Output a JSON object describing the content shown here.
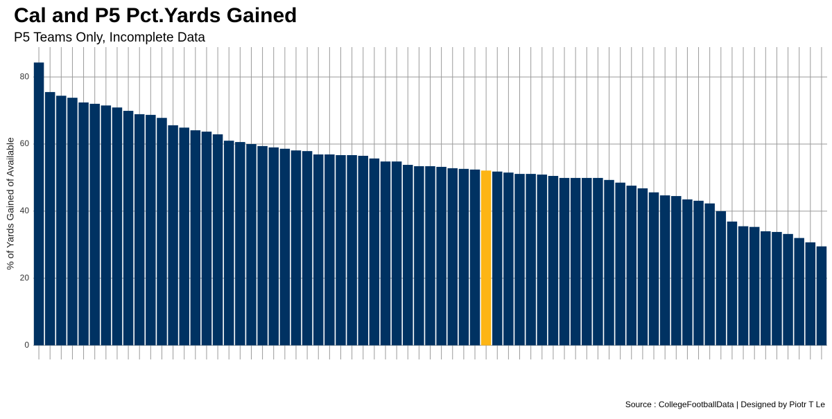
{
  "chart_data": {
    "type": "bar",
    "title": "Cal and P5  Pct.Yards Gained",
    "subtitle": "P5 Teams Only, Incomplete Data",
    "y_label": "% of Yards Gained of Available",
    "caption": "Source : CollegeFootballData | Designed by Piotr T Le",
    "categories": [
      null,
      null,
      null,
      null,
      null,
      null,
      null,
      null,
      null,
      null,
      null,
      null,
      null,
      null,
      null,
      null,
      null,
      null,
      null,
      null,
      null,
      null,
      null,
      null,
      null,
      null,
      null,
      null,
      null,
      null,
      null,
      null,
      null,
      null,
      null,
      null,
      null,
      null,
      null,
      null,
      null,
      null,
      null,
      null,
      null,
      null,
      null,
      null,
      null,
      null,
      null,
      null,
      null,
      null,
      null,
      null,
      null,
      null,
      null,
      null,
      null,
      null,
      null,
      null,
      null,
      null,
      null,
      null,
      null,
      null,
      null
    ],
    "values": [
      84.3,
      75.5,
      74.4,
      73.8,
      72.4,
      72.0,
      71.5,
      70.9,
      69.9,
      68.9,
      68.7,
      67.8,
      65.6,
      64.9,
      64.1,
      63.7,
      62.9,
      61.0,
      60.6,
      60.0,
      59.4,
      59.0,
      58.6,
      58.1,
      57.9,
      56.9,
      56.9,
      56.7,
      56.7,
      56.5,
      55.7,
      54.8,
      54.8,
      53.8,
      53.4,
      53.4,
      53.2,
      52.8,
      52.6,
      52.4,
      52.1,
      51.8,
      51.5,
      51.1,
      51.1,
      50.9,
      50.5,
      49.9,
      49.9,
      49.9,
      49.9,
      49.3,
      48.5,
      47.6,
      46.8,
      45.6,
      44.7,
      44.5,
      43.5,
      43.1,
      42.3,
      40.0,
      36.9,
      35.5,
      35.3,
      34.0,
      33.8,
      33.2,
      32.0,
      30.7,
      29.5
    ],
    "color": "#003262",
    "highlight": {
      "index": 40,
      "color": "#FDB515"
    },
    "ylim": [
      -4.2,
      88.9
    ],
    "yticks": [
      0,
      20,
      40,
      60,
      80
    ],
    "grid": true
  }
}
